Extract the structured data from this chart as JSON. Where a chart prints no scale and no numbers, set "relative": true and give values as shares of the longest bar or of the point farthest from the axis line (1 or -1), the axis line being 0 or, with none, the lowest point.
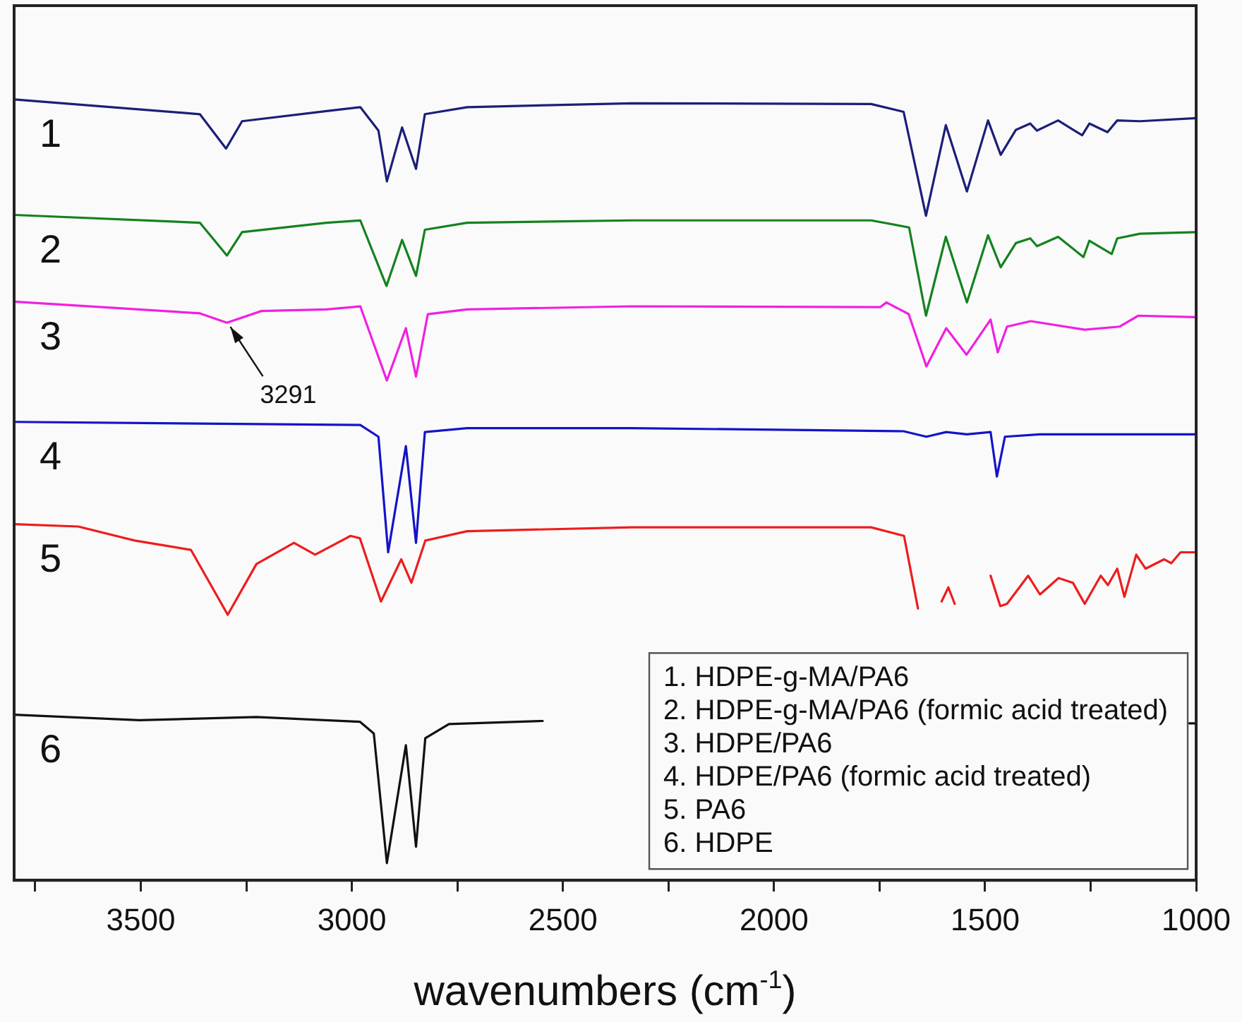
{
  "chart_data": {
    "type": "line",
    "xlabel": "wavenumbers (cm$^{-1}$)",
    "relative": true,
    "xlim": [
      3800,
      1000
    ],
    "xticks": [
      {
        "value": 3750,
        "label": null
      },
      3500,
      {
        "value": 3250,
        "label": null
      },
      3000,
      {
        "value": 2750,
        "label": null
      },
      2500,
      {
        "value": 2250,
        "label": null
      },
      2000,
      {
        "value": 1750,
        "label": null
      },
      1500,
      {
        "value": 1250,
        "label": null
      },
      1000
    ],
    "tick_labels": "x",
    "grid": false,
    "legend": false,
    "marker": "none",
    "line_style": "solid",
    "series": [
      {
        "name": "1",
        "color": "#1b1f78",
        "x": [
          3800,
          3360,
          3298,
          3260,
          3060,
          2980,
          2937,
          2917,
          2881,
          2848,
          2827,
          2727,
          2337,
          1770,
          1693,
          1640,
          1593,
          1543,
          1493,
          1463,
          1427,
          1393,
          1377,
          1327,
          1270,
          1253,
          1210,
          1187,
          1133,
          1000
        ],
        "values": [
          1.0,
          0.981,
          0.937,
          0.972,
          0.985,
          0.99,
          0.96,
          0.895,
          0.964,
          0.911,
          0.981,
          0.99,
          0.995,
          0.994,
          0.984,
          0.851,
          0.967,
          0.882,
          0.973,
          0.929,
          0.961,
          0.969,
          0.96,
          0.973,
          0.954,
          0.969,
          0.958,
          0.973,
          0.972,
          0.976
        ]
      },
      {
        "name": "2",
        "color": "#14821e",
        "x": [
          3800,
          3360,
          3296,
          3260,
          3060,
          2980,
          2918,
          2881,
          2848,
          2827,
          2727,
          2337,
          1770,
          1680,
          1640,
          1593,
          1543,
          1493,
          1463,
          1427,
          1393,
          1377,
          1327,
          1267,
          1253,
          1200,
          1187,
          1133,
          1000
        ],
        "values": [
          0.852,
          0.842,
          0.8,
          0.83,
          0.842,
          0.845,
          0.761,
          0.82,
          0.774,
          0.833,
          0.842,
          0.845,
          0.845,
          0.836,
          0.723,
          0.824,
          0.74,
          0.826,
          0.785,
          0.816,
          0.822,
          0.812,
          0.824,
          0.798,
          0.819,
          0.802,
          0.822,
          0.828,
          0.83
        ]
      },
      {
        "name": "3",
        "color": "#f020e0",
        "x": [
          3800,
          3360,
          3296,
          3214,
          3060,
          2980,
          2917,
          2872,
          2848,
          2820,
          2727,
          2337,
          1748,
          1734,
          1681,
          1639,
          1592,
          1544,
          1487,
          1470,
          1448,
          1392,
          1264,
          1181,
          1137,
          1000
        ],
        "values": [
          0.741,
          0.726,
          0.714,
          0.729,
          0.731,
          0.735,
          0.64,
          0.707,
          0.645,
          0.725,
          0.731,
          0.735,
          0.734,
          0.74,
          0.725,
          0.658,
          0.707,
          0.673,
          0.718,
          0.676,
          0.709,
          0.716,
          0.705,
          0.709,
          0.723,
          0.721
        ]
      },
      {
        "name": "4",
        "color": "#1414c8",
        "x": [
          3800,
          2980,
          2937,
          2914,
          2872,
          2848,
          2827,
          2727,
          2337,
          1693,
          1639,
          1592,
          1543,
          1487,
          1472,
          1453,
          1370,
          1000
        ],
        "values": [
          0.587,
          0.583,
          0.568,
          0.42,
          0.556,
          0.432,
          0.574,
          0.579,
          0.579,
          0.575,
          0.568,
          0.574,
          0.571,
          0.574,
          0.517,
          0.568,
          0.571,
          0.571
        ]
      },
      {
        "name": "5",
        "color": "#ee1c1c",
        "x": [
          3800,
          3648,
          3514,
          3381,
          3294,
          3226,
          3137,
          3087,
          3003,
          2981,
          2931,
          2883,
          2859,
          2826,
          2727,
          2337,
          1770,
          1692,
          1659,
          1630,
          1603,
          1587,
          1572,
          1555,
          1487,
          1464,
          1448,
          1398,
          1370,
          1326,
          1292,
          1264,
          1226,
          1209,
          1187,
          1170,
          1142,
          1120,
          1076,
          1059,
          1037,
          1000
        ],
        "values": [
          0.456,
          0.453,
          0.435,
          0.423,
          0.34,
          0.405,
          0.432,
          0.417,
          0.441,
          0.438,
          0.357,
          0.411,
          0.381,
          0.435,
          0.447,
          0.452,
          0.452,
          0.441,
          0.348,
          null,
          0.357,
          0.375,
          0.354,
          null,
          0.39,
          0.351,
          0.354,
          0.39,
          0.366,
          0.387,
          0.381,
          0.354,
          0.39,
          0.378,
          0.399,
          0.363,
          0.417,
          0.399,
          0.411,
          0.406,
          0.42,
          0.42
        ]
      },
      {
        "name": "6",
        "color": "#111111",
        "x": [
          3800,
          3503,
          3226,
          2981,
          2948,
          2917,
          2872,
          2848,
          2826,
          2770,
          2548,
          2000,
          1017,
          1000
        ],
        "values": [
          0.212,
          0.205,
          0.209,
          0.203,
          0.188,
          0.022,
          0.173,
          0.043,
          0.182,
          0.2,
          0.204,
          null,
          0.201,
          0.201
        ]
      }
    ],
    "annotations": [
      {
        "text": "3291",
        "x": 3291,
        "y": 0.714
      },
      "1. HDPE-g-MA/PA6",
      "2. HDPE-g-MA/PA6 (formic acid treated)",
      "3. HDPE/PA6",
      "4. HDPE/PA6 (formic acid treated)",
      "5. PA6",
      "6. HDPE"
    ]
  }
}
